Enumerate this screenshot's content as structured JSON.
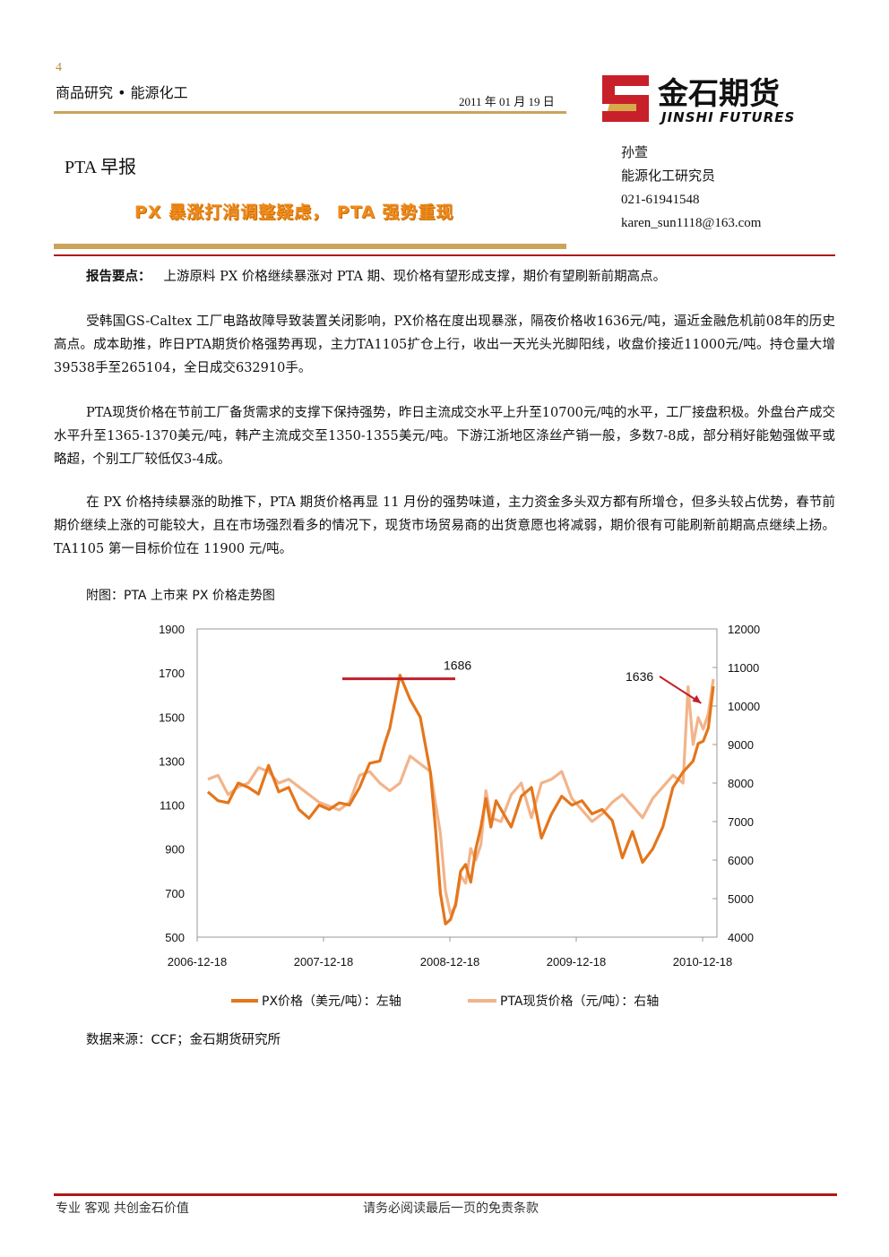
{
  "header": {
    "page_number": "4",
    "section": "商品研究 • 能源化工",
    "date": "2011 年 01 月 19 日",
    "logo_text": "金石期货",
    "logo_subtext": "JINSHI FUTURES"
  },
  "report": {
    "title": "PTA 早报",
    "subtitle": "PX 暴涨打消调整疑虑， PTA 强势重现"
  },
  "author": {
    "name": "孙萱",
    "role": "能源化工研究员",
    "phone": "021-61941548",
    "email": "karen_sun1118@163.com"
  },
  "body": {
    "key_label": "报告要点：",
    "key_text": "上游原料 PX 价格继续暴涨对 PTA 期、现价格有望形成支撑，期价有望刷新前期高点。",
    "p1": "受韩国GS-Caltex 工厂电路故障导致装置关闭影响，PX价格在度出现暴涨，隔夜价格收1636元/吨，逼近金融危机前08年的历史高点。成本助推，昨日PTA期货价格强势再现，主力TA1105扩仓上行，收出一天光头光脚阳线，收盘价接近11000元/吨。持仓量大增39538手至265104，全日成交632910手。",
    "p2": "PTA现货价格在节前工厂备货需求的支撑下保持强势，昨日主流成交水平上升至10700元/吨的水平，工厂接盘积极。外盘台产成交水平升至1365-1370美元/吨，韩产主流成交至1350-1355美元/吨。下游江浙地区涤丝产销一般，多数7-8成，部分稍好能勉强做平或略超，个别工厂较低仅3-4成。",
    "p3": "在 PX 价格持续暴涨的助推下，PTA 期货价格再显 11 月份的强势味道，主力资金多头双方都有所增仓，但多头较占优势，春节前期价继续上涨的可能较大，且在市场强烈看多的情况下，现货市场贸易商的出货意愿也将减弱，期价很有可能刷新前期高点继续上扬。TA1105 第一目标价位在 11900 元/吨。"
  },
  "figure": {
    "caption": "附图：PTA 上市来 PX 价格走势图",
    "source": "数据来源：CCF；金石期货研究所"
  },
  "chart_data": {
    "type": "line",
    "x_tick_labels": [
      "2006-12-18",
      "2007-12-18",
      "2008-12-18",
      "2009-12-18",
      "2010-12-18"
    ],
    "y_left": {
      "ylim": [
        500,
        1900
      ],
      "ticks": [
        "1900",
        "1700",
        "1500",
        "1300",
        "1100",
        "900",
        "700",
        "500"
      ]
    },
    "y_right": {
      "ylim": [
        4000,
        12000
      ],
      "ticks": [
        "12000",
        "11000",
        "10000",
        "9000",
        "8000",
        "7000",
        "6000",
        "5000",
        "4000"
      ]
    },
    "annotations": [
      "1686",
      "1636"
    ],
    "colors": {
      "px": "#e4761c",
      "pta": "#f2b48a",
      "marker": "#c0202a"
    },
    "series": [
      {
        "name": "PX价格（美元/吨）：左轴",
        "axis": "left",
        "t": [
          0,
          0.02,
          0.04,
          0.06,
          0.08,
          0.1,
          0.12,
          0.14,
          0.16,
          0.18,
          0.2,
          0.22,
          0.24,
          0.26,
          0.28,
          0.3,
          0.32,
          0.34,
          0.35,
          0.36,
          0.38,
          0.4,
          0.42,
          0.44,
          0.45,
          0.46,
          0.47,
          0.48,
          0.49,
          0.5,
          0.51,
          0.52,
          0.53,
          0.54,
          0.55,
          0.56,
          0.57,
          0.58,
          0.6,
          0.62,
          0.64,
          0.66,
          0.68,
          0.7,
          0.72,
          0.74,
          0.76,
          0.78,
          0.8,
          0.82,
          0.84,
          0.86,
          0.88,
          0.9,
          0.92,
          0.94,
          0.96,
          0.97,
          0.98,
          0.99,
          1.0
        ],
        "values": [
          1160,
          1120,
          1110,
          1200,
          1180,
          1150,
          1280,
          1160,
          1180,
          1080,
          1040,
          1100,
          1080,
          1110,
          1100,
          1180,
          1290,
          1300,
          1380,
          1450,
          1690,
          1580,
          1500,
          1250,
          1000,
          700,
          560,
          580,
          650,
          800,
          830,
          750,
          900,
          1000,
          1130,
          1000,
          1120,
          1080,
          1000,
          1140,
          1180,
          950,
          1060,
          1140,
          1100,
          1120,
          1060,
          1080,
          1030,
          860,
          980,
          840,
          900,
          1000,
          1180,
          1250,
          1300,
          1380,
          1390,
          1450,
          1640
        ]
      },
      {
        "name": "PTA现货价格（元/吨）：右轴",
        "axis": "right",
        "t": [
          0,
          0.02,
          0.04,
          0.06,
          0.08,
          0.1,
          0.12,
          0.14,
          0.16,
          0.18,
          0.2,
          0.22,
          0.24,
          0.26,
          0.28,
          0.3,
          0.32,
          0.34,
          0.36,
          0.38,
          0.4,
          0.42,
          0.44,
          0.46,
          0.47,
          0.48,
          0.49,
          0.5,
          0.51,
          0.52,
          0.53,
          0.54,
          0.55,
          0.56,
          0.58,
          0.6,
          0.62,
          0.64,
          0.66,
          0.68,
          0.7,
          0.72,
          0.74,
          0.76,
          0.78,
          0.8,
          0.82,
          0.84,
          0.86,
          0.88,
          0.9,
          0.92,
          0.94,
          0.95,
          0.96,
          0.97,
          0.98,
          0.99,
          1.0
        ],
        "values": [
          8100,
          8200,
          7700,
          7900,
          8000,
          8400,
          8300,
          8000,
          8100,
          7900,
          7700,
          7500,
          7400,
          7300,
          7500,
          8200,
          8300,
          8000,
          7800,
          8000,
          8700,
          8500,
          8300,
          6700,
          5200,
          4600,
          4800,
          5600,
          5400,
          6300,
          6000,
          6400,
          7800,
          7100,
          7000,
          7700,
          8000,
          7100,
          8000,
          8100,
          8300,
          7600,
          7300,
          7000,
          7200,
          7500,
          7700,
          7400,
          7100,
          7600,
          7900,
          8200,
          8000,
          10500,
          9000,
          9700,
          9400,
          9800,
          10700
        ]
      }
    ],
    "ann_links": [
      {
        "label": "1686",
        "axis": "left",
        "value": 1686,
        "t": 0.38
      },
      {
        "label": "1636",
        "axis": "left",
        "value": 1636,
        "t": 0.99
      }
    ]
  },
  "footer": {
    "left": "专业 客观 共创金石价值",
    "center": "请务必阅读最后一页的免责条款"
  }
}
